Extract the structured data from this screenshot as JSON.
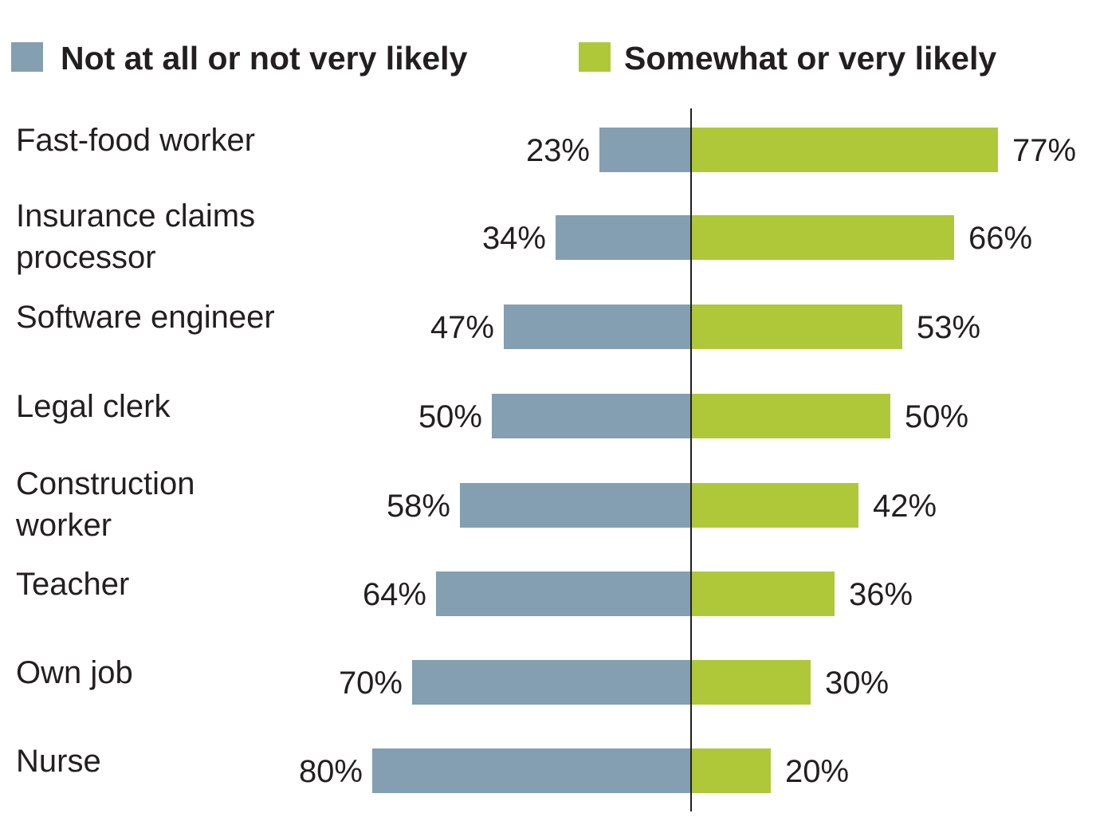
{
  "chart_data": {
    "type": "bar",
    "orientation": "horizontal-diverging",
    "legend_position": "top",
    "grid": false,
    "xlim": [
      -100,
      100
    ],
    "categories": [
      [
        "Fast-food worker"
      ],
      [
        "Insurance claims",
        "processor"
      ],
      [
        "Software engineer"
      ],
      [
        "Legal clerk"
      ],
      [
        "Construction",
        "worker"
      ],
      [
        "Teacher"
      ],
      [
        "Own job"
      ],
      [
        "Nurse"
      ]
    ],
    "series": [
      {
        "name": "Not at all or not very likely",
        "color": "#839fb1",
        "direction": "left",
        "values": [
          23,
          34,
          47,
          50,
          58,
          64,
          70,
          80
        ],
        "labels": [
          "23%",
          "34%",
          "47%",
          "50%",
          "58%",
          "64%",
          "70%",
          "80%"
        ]
      },
      {
        "name": "Somewhat or very likely",
        "color": "#afc83a",
        "direction": "right",
        "values": [
          77,
          66,
          53,
          50,
          42,
          36,
          30,
          20
        ],
        "labels": [
          "77%",
          "66%",
          "53%",
          "50%",
          "42%",
          "36%",
          "30%",
          "20%"
        ]
      }
    ]
  }
}
